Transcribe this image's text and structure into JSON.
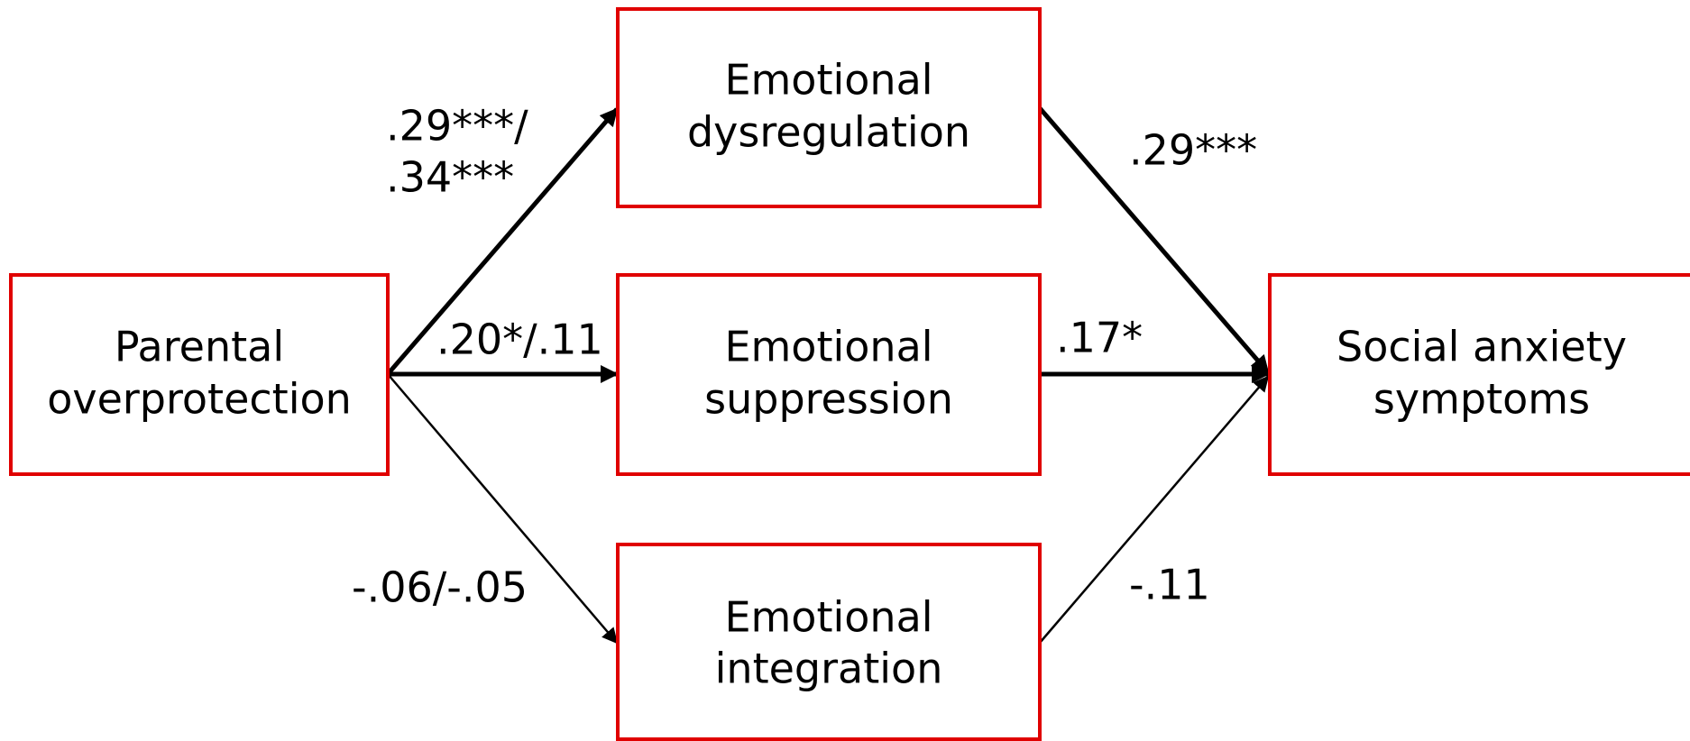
{
  "nodes": [
    {
      "label": [
        "Parental",
        "overprotection"
      ]
    },
    {
      "label": [
        "Emotional",
        "dysregulation"
      ]
    },
    {
      "label": [
        "Emotional",
        "suppression"
      ]
    },
    {
      "label": [
        "Emotional",
        "integration"
      ]
    },
    {
      "label": [
        "Social anxiety",
        "symptoms"
      ]
    }
  ],
  "edges": [
    {
      "label": [
        ".29***/",
        ".34***"
      ]
    },
    {
      "label": [
        ".20*/.11"
      ]
    },
    {
      "label": [
        "-.06/-.05"
      ]
    },
    {
      "label": [
        ".29***"
      ]
    },
    {
      "label": [
        ".17*"
      ]
    },
    {
      "label": [
        "-.11"
      ]
    }
  ]
}
